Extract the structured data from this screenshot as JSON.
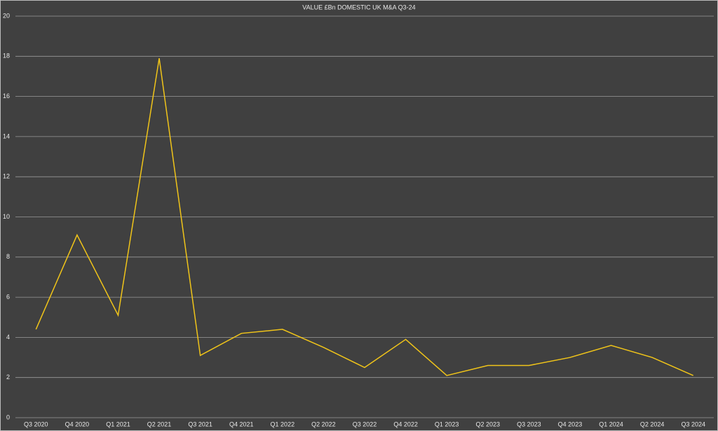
{
  "chart_data": {
    "type": "line",
    "title": "VALUE £Bn DOMESTIC UK M&A Q3-24",
    "categories": [
      "Q3 2020",
      "Q4 2020",
      "Q1 2021",
      "Q2 2021",
      "Q3 2021",
      "Q4 2021",
      "Q1 2022",
      "Q2 2022",
      "Q3 2022",
      "Q4 2022",
      "Q1 2023",
      "Q2 2023",
      "Q3 2023",
      "Q4 2023",
      "Q1 2024",
      "Q2 2024",
      "Q3 2024"
    ],
    "series": [
      {
        "name": "Value £Bn",
        "color": "#f0c419",
        "values": [
          4.4,
          9.1,
          5.1,
          17.9,
          3.1,
          4.2,
          4.4,
          3.5,
          2.5,
          3.9,
          2.1,
          2.6,
          2.6,
          3.0,
          3.6,
          3.0,
          2.1
        ]
      }
    ],
    "ylim": [
      0,
      20
    ],
    "yticks": [
      0,
      2,
      4,
      6,
      8,
      10,
      12,
      14,
      16,
      18,
      20
    ],
    "grid": true
  }
}
